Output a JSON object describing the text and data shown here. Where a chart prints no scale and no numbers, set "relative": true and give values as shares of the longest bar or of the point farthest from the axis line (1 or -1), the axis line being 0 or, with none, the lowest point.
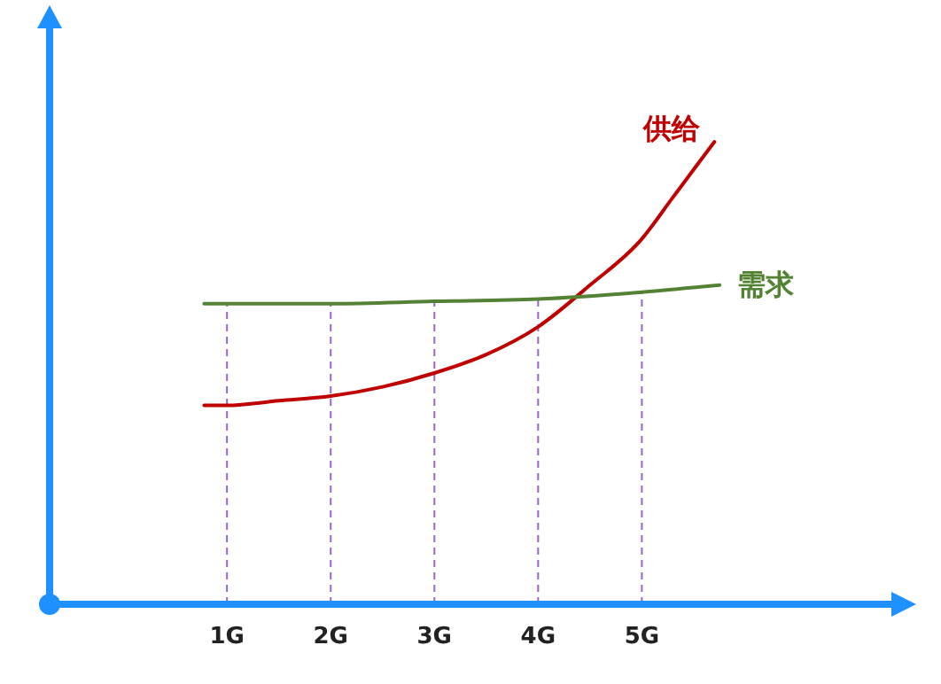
{
  "chart_data": {
    "type": "line",
    "relative": true,
    "x": [
      0.78,
      1,
      1.5,
      2,
      2.5,
      3,
      3.5,
      4,
      4.5,
      5,
      5.3,
      5.7
    ],
    "xlim": [
      -0.71,
      7.44
    ],
    "xticks": [
      {
        "value": 1,
        "label": "1G"
      },
      {
        "value": 2,
        "label": "2G"
      },
      {
        "value": 3,
        "label": "3G"
      },
      {
        "value": 4,
        "label": "4G"
      },
      {
        "value": 5,
        "label": "5G"
      }
    ],
    "ref_lines": [
      {
        "axis": "x",
        "value": 1,
        "color": "#9966cc",
        "line_style": "dashed"
      },
      {
        "axis": "x",
        "value": 2,
        "color": "#9966cc",
        "line_style": "dashed"
      },
      {
        "axis": "x",
        "value": 3,
        "color": "#9966cc",
        "line_style": "dashed"
      },
      {
        "axis": "x",
        "value": 4,
        "color": "#9966cc",
        "line_style": "dashed"
      },
      {
        "axis": "x",
        "value": 5,
        "color": "#9966cc",
        "line_style": "dashed"
      }
    ],
    "legend": false,
    "marker": "none",
    "line_style": "solid",
    "series": [
      {
        "name": "供给",
        "color": "#c00000",
        "values": [
          0.43,
          0.43,
          0.44,
          0.45,
          0.47,
          0.5,
          0.54,
          0.6,
          0.69,
          0.79,
          0.88,
          1.0
        ]
      },
      {
        "name": "需求",
        "color": "#548235",
        "x": [
          0.78,
          2,
          3,
          4,
          5,
          5.75
        ],
        "values": [
          0.65,
          0.65,
          0.655,
          0.66,
          0.675,
          0.69
        ]
      }
    ]
  }
}
